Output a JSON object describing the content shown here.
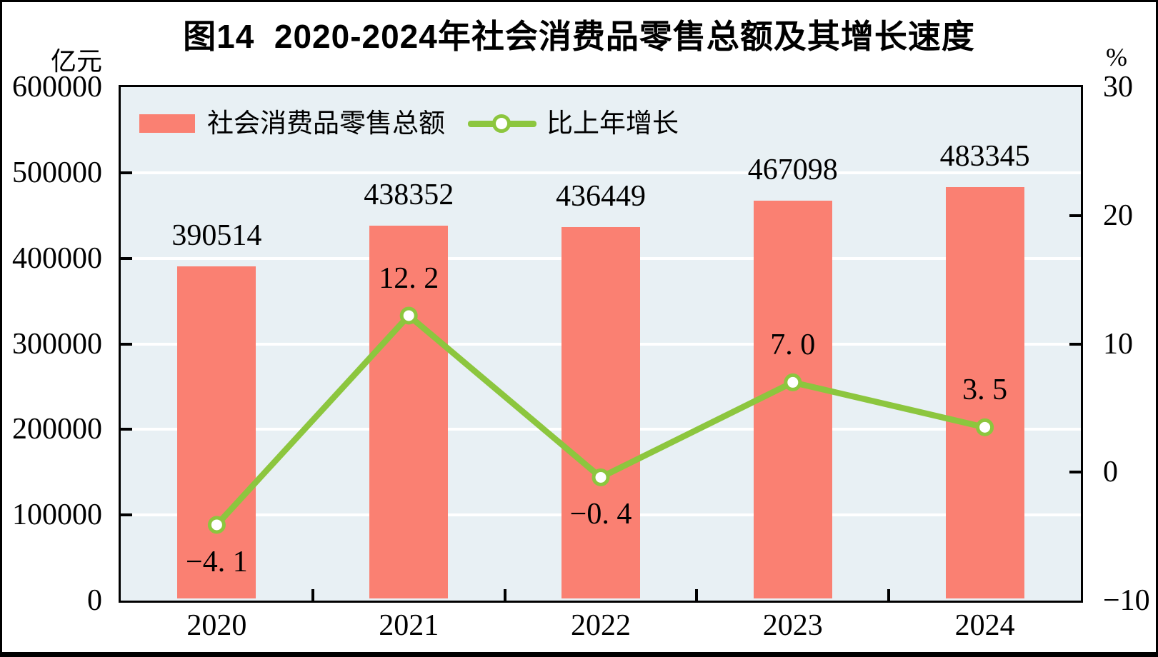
{
  "title": "图14  2020-2024年社会消费品零售总额及其增长速度",
  "axes_units": {
    "left": "亿元",
    "right": "%"
  },
  "legend": {
    "bar_label": "社会消费品零售总额",
    "line_label": "比上年增长"
  },
  "colors": {
    "bar": "#FA8072",
    "line": "#8CC63E",
    "plot_background": "#E8F0F4",
    "gridline": "#FFFFFF",
    "axis_and_text": "#000000"
  },
  "chart_data": {
    "type": "bar+line combo",
    "categories": [
      "2020",
      "2021",
      "2022",
      "2023",
      "2024"
    ],
    "series": [
      {
        "name": "社会消费品零售总额",
        "type": "bar",
        "axis": "left",
        "unit": "亿元",
        "values": [
          390514,
          438352,
          436449,
          467098,
          483345
        ],
        "labels": [
          "390514",
          "438352",
          "436449",
          "467098",
          "483345"
        ]
      },
      {
        "name": "比上年增长",
        "type": "line",
        "axis": "right",
        "unit": "%",
        "values": [
          -4.1,
          12.2,
          -0.4,
          7.0,
          3.5
        ],
        "labels": [
          "−4. 1",
          "12. 2",
          "−0. 4",
          "7. 0",
          "3. 5"
        ]
      }
    ],
    "left_axis": {
      "unit": "亿元",
      "min": 0,
      "max": 600000,
      "tick_step": 100000,
      "tick_labels": [
        "0",
        "100000",
        "200000",
        "300000",
        "400000",
        "500000",
        "600000"
      ]
    },
    "right_axis": {
      "unit": "%",
      "min": -10,
      "max": 30,
      "tick_step": 10,
      "tick_labels": [
        "−10",
        "0",
        "10",
        "20",
        "30"
      ]
    },
    "grid": "horizontal white lines at left-axis tick levels",
    "legend_position": "top-left inside plot"
  }
}
